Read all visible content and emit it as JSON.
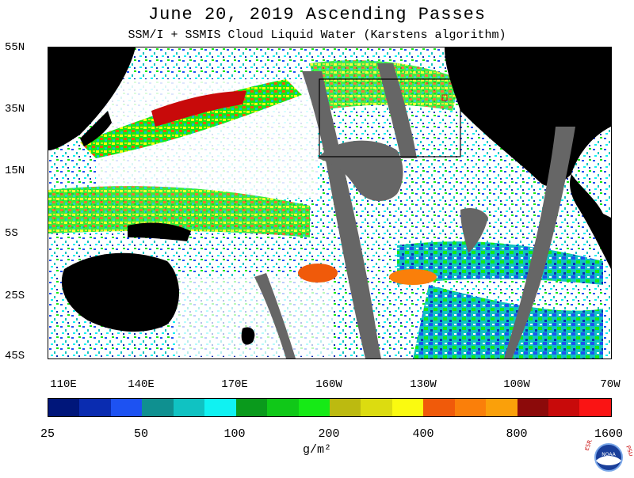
{
  "title": "June 20, 2019  Ascending Passes",
  "subtitle": "SSM/I + SSMIS Cloud Liquid Water (Karstens algorithm)",
  "lat_labels": [
    "55N",
    "35N",
    "15N",
    "5S",
    "25S",
    "45S"
  ],
  "lon_labels": [
    "110E",
    "140E",
    "170E",
    "160W",
    "130W",
    "100W",
    "70W"
  ],
  "colorbar": {
    "colors": [
      "#00167a",
      "#0a2cb0",
      "#1d52f2",
      "#0f9090",
      "#10c2c2",
      "#10f2f2",
      "#0a9a1c",
      "#10c818",
      "#16ea16",
      "#bcba10",
      "#dcdc10",
      "#fafa10",
      "#f05a0a",
      "#fa7f0a",
      "#faa00a",
      "#8c0a0a",
      "#c80a0a",
      "#fa1414"
    ],
    "tick_labels": [
      "25",
      "50",
      "100",
      "200",
      "400",
      "800",
      "1600"
    ]
  },
  "units": "g/m²",
  "logo": {
    "left_text": "ESRL",
    "right_text": "PSD",
    "center_text": "NOAA"
  }
}
